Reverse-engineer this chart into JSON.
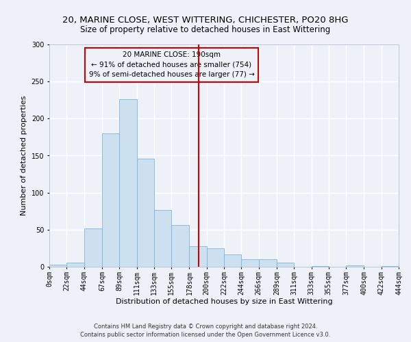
{
  "title1": "20, MARINE CLOSE, WEST WITTERING, CHICHESTER, PO20 8HG",
  "title2": "Size of property relative to detached houses in East Wittering",
  "xlabel": "Distribution of detached houses by size in East Wittering",
  "ylabel": "Number of detached properties",
  "bin_edges": [
    0,
    22,
    44,
    67,
    89,
    111,
    133,
    155,
    178,
    200,
    222,
    244,
    266,
    289,
    311,
    333,
    355,
    377,
    400,
    422,
    444
  ],
  "bar_heights": [
    3,
    6,
    52,
    180,
    226,
    146,
    77,
    56,
    28,
    25,
    17,
    10,
    10,
    6,
    0,
    1,
    0,
    2,
    0,
    1
  ],
  "bar_facecolor": "#cde0f0",
  "bar_edgecolor": "#7ab5d8",
  "vline_x": 190,
  "vline_color": "#cc0000",
  "ylim": [
    0,
    300
  ],
  "xlim": [
    0,
    444
  ],
  "yticks": [
    0,
    50,
    100,
    150,
    200,
    250,
    300
  ],
  "xtick_labels": [
    "0sqm",
    "22sqm",
    "44sqm",
    "67sqm",
    "89sqm",
    "111sqm",
    "133sqm",
    "155sqm",
    "178sqm",
    "200sqm",
    "222sqm",
    "244sqm",
    "266sqm",
    "289sqm",
    "311sqm",
    "333sqm",
    "355sqm",
    "377sqm",
    "400sqm",
    "422sqm",
    "444sqm"
  ],
  "xtick_positions": [
    0,
    22,
    44,
    67,
    89,
    111,
    133,
    155,
    178,
    200,
    222,
    244,
    266,
    289,
    311,
    333,
    355,
    377,
    400,
    422,
    444
  ],
  "annotation_title": "20 MARINE CLOSE: 190sqm",
  "annotation_line1": "← 91% of detached houses are smaller (754)",
  "annotation_line2": "9% of semi-detached houses are larger (77) →",
  "annotation_box_color": "#cc0000",
  "footer1": "Contains HM Land Registry data © Crown copyright and database right 2024.",
  "footer2": "Contains public sector information licensed under the Open Government Licence v3.0.",
  "bg_color": "#eef2f8",
  "grid_color": "#ffffff",
  "title1_fontsize": 9.5,
  "title2_fontsize": 8.5,
  "axis_label_fontsize": 8,
  "tick_fontsize": 7,
  "annotation_fontsize": 7.5,
  "footer_fontsize": 6
}
